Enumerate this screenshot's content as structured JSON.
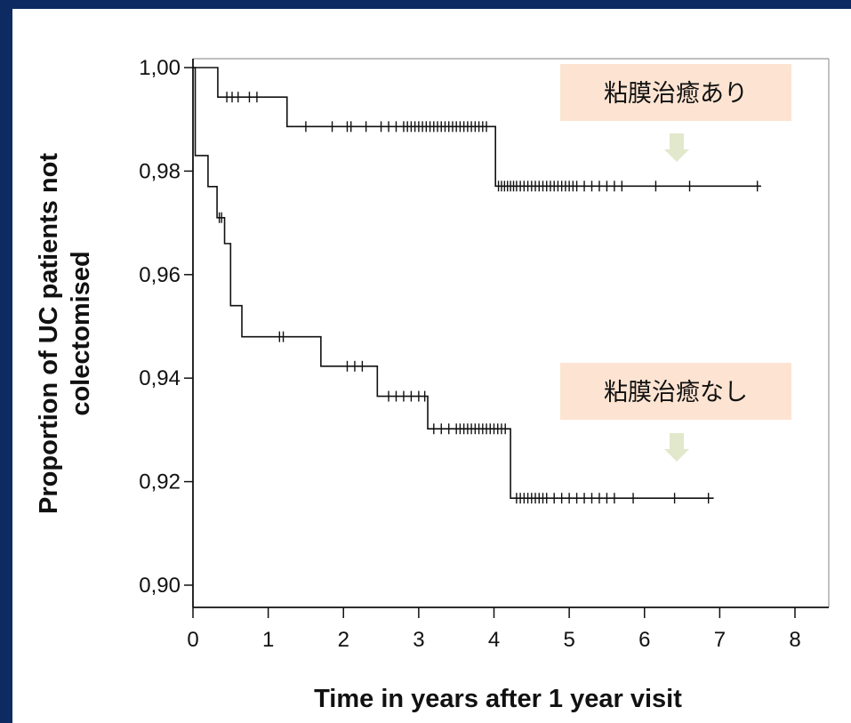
{
  "chart_data": {
    "type": "line",
    "step": true,
    "xlabel": "Time in years after 1 year visit",
    "ylabel_lines": [
      "Proportion of UC patients not",
      "colectomised"
    ],
    "xlim": [
      0,
      8
    ],
    "ylim": [
      0.9,
      1.0
    ],
    "x_ticks": [
      0,
      1,
      2,
      3,
      4,
      5,
      6,
      7,
      8
    ],
    "x_tick_labels": [
      "0",
      "1",
      "2",
      "3",
      "4",
      "5",
      "6",
      "7",
      "8"
    ],
    "y_ticks": [
      0.9,
      0.92,
      0.94,
      0.96,
      0.98,
      1.0
    ],
    "y_tick_labels": [
      "0,90",
      "0,92",
      "0,94",
      "0,96",
      "0,98",
      "1,00"
    ],
    "grid": false,
    "series": [
      {
        "name": "粘膜治癒あり",
        "color": "#111111",
        "steps": [
          [
            0,
            1.0
          ],
          [
            0.33,
            0.9943
          ],
          [
            1.25,
            0.9886
          ],
          [
            4.02,
            0.9771
          ],
          [
            7.55,
            0.9771
          ]
        ],
        "censors": [
          0.45,
          0.52,
          0.6,
          0.75,
          0.85,
          1.5,
          1.85,
          2.05,
          2.1,
          2.3,
          2.5,
          2.6,
          2.7,
          2.8,
          2.85,
          2.9,
          2.95,
          3.0,
          3.05,
          3.1,
          3.15,
          3.2,
          3.25,
          3.3,
          3.35,
          3.4,
          3.45,
          3.5,
          3.55,
          3.6,
          3.65,
          3.7,
          3.75,
          3.8,
          3.85,
          3.9,
          4.06,
          4.1,
          4.14,
          4.18,
          4.22,
          4.26,
          4.3,
          4.35,
          4.4,
          4.45,
          4.5,
          4.55,
          4.6,
          4.65,
          4.7,
          4.75,
          4.8,
          4.85,
          4.9,
          4.95,
          5.0,
          5.05,
          5.1,
          5.2,
          5.3,
          5.4,
          5.5,
          5.6,
          5.7,
          6.15,
          6.6,
          7.5
        ]
      },
      {
        "name": "粘膜治癒なし",
        "color": "#111111",
        "steps": [
          [
            0,
            1.0
          ],
          [
            0.03,
            0.983
          ],
          [
            0.2,
            0.977
          ],
          [
            0.32,
            0.971
          ],
          [
            0.42,
            0.966
          ],
          [
            0.5,
            0.954
          ],
          [
            0.65,
            0.948
          ],
          [
            1.7,
            0.9423
          ],
          [
            2.45,
            0.9365
          ],
          [
            3.12,
            0.9302
          ],
          [
            4.22,
            0.9168
          ],
          [
            6.92,
            0.9168
          ]
        ],
        "censors": [
          0.35,
          0.38,
          1.15,
          1.2,
          2.05,
          2.15,
          2.25,
          2.6,
          2.7,
          2.8,
          2.9,
          3.0,
          3.08,
          3.2,
          3.3,
          3.4,
          3.5,
          3.55,
          3.6,
          3.65,
          3.7,
          3.75,
          3.8,
          3.85,
          3.9,
          3.95,
          4.0,
          4.05,
          4.1,
          4.15,
          4.3,
          4.35,
          4.4,
          4.45,
          4.5,
          4.55,
          4.6,
          4.65,
          4.7,
          4.8,
          4.9,
          5.0,
          5.1,
          5.2,
          5.3,
          5.4,
          5.5,
          5.6,
          5.85,
          6.4,
          6.85
        ]
      }
    ],
    "annotations": [
      {
        "name": "callout-healing",
        "text": "粘膜治癒あり",
        "background": "#fde4d2",
        "arrow_color": "#e2e8cc"
      },
      {
        "name": "callout-no-healing",
        "text": "粘膜治癒なし",
        "background": "#fde4d2",
        "arrow_color": "#e2e8cc"
      }
    ]
  }
}
